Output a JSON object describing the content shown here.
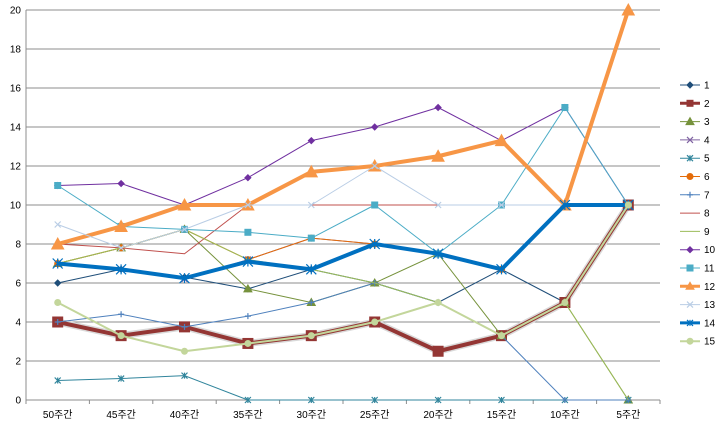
{
  "chart_data": {
    "type": "line",
    "title": "",
    "xlabel": "",
    "ylabel": "",
    "ylim": [
      0,
      20
    ],
    "yticks": [
      0,
      2,
      4,
      6,
      8,
      10,
      12,
      14,
      16,
      18,
      20
    ],
    "grid": "horizontal",
    "legend_position": "right",
    "categories": [
      "50주간",
      "45주간",
      "40주간",
      "35주간",
      "30주간",
      "25주간",
      "20주간",
      "15주간",
      "10주간",
      "5주간"
    ],
    "series": [
      {
        "name": "1",
        "color": "#1f4e79",
        "marker": "diamond",
        "width": 1,
        "values": [
          6,
          6.7,
          6.3,
          5.7,
          6.7,
          6,
          5,
          6.7,
          5,
          10
        ]
      },
      {
        "name": "2",
        "color": "#943634",
        "marker": "square",
        "width": 4,
        "casing": "#d9d9d9",
        "values": [
          4,
          3.3,
          3.75,
          2.9,
          3.3,
          4,
          2.5,
          3.3,
          5,
          10
        ]
      },
      {
        "name": "3",
        "color": "#76923c",
        "marker": "triangle",
        "width": 1,
        "values": [
          7,
          7.8,
          8.75,
          5.7,
          5,
          6,
          7.5,
          3.3,
          5,
          0
        ]
      },
      {
        "name": "4",
        "color": "#8064a2",
        "marker": "x",
        "width": 1,
        "values": [
          7,
          6.7,
          6.2,
          7.2,
          8.3,
          8,
          7.5,
          6.7,
          10,
          10
        ]
      },
      {
        "name": "5",
        "color": "#31859c",
        "marker": "star",
        "width": 1,
        "values": [
          1,
          1.1,
          1.25,
          0,
          0,
          0,
          0,
          0,
          0,
          0
        ]
      },
      {
        "name": "6",
        "color": "#e46c0a",
        "marker": "circle",
        "width": 1,
        "values": [
          7,
          7.8,
          8.75,
          7.2,
          8.3,
          8,
          7.5,
          6.7,
          10,
          10
        ]
      },
      {
        "name": "7",
        "color": "#4f81bd",
        "marker": "plus",
        "width": 1,
        "values": [
          4,
          4.4,
          3.75,
          4.3,
          5,
          6,
          5,
          3.3,
          0,
          0
        ]
      },
      {
        "name": "8",
        "color": "#c0504d",
        "marker": "none",
        "width": 1,
        "values": [
          8,
          7.8,
          7.5,
          10,
          10,
          10,
          10,
          10,
          10,
          10
        ]
      },
      {
        "name": "9",
        "color": "#9bbb59",
        "marker": "none",
        "width": 1,
        "values": [
          7,
          7.8,
          8.75,
          7.2,
          6.7,
          6,
          5,
          3.3,
          5,
          0
        ]
      },
      {
        "name": "10",
        "color": "#7030a0",
        "marker": "diamond",
        "width": 1,
        "values": [
          11,
          11.1,
          10,
          11.4,
          13.3,
          14,
          15,
          13.3,
          15,
          10
        ]
      },
      {
        "name": "11",
        "color": "#4bacc6",
        "marker": "square",
        "width": 1,
        "values": [
          11,
          8.9,
          8.75,
          8.6,
          8.3,
          10,
          7.5,
          10,
          15,
          10
        ]
      },
      {
        "name": "12",
        "color": "#f79646",
        "marker": "triangle",
        "width": 4,
        "values": [
          8,
          8.9,
          10,
          10,
          11.7,
          12,
          12.5,
          13.3,
          10,
          20
        ]
      },
      {
        "name": "13",
        "color": "#b9cde5",
        "marker": "x",
        "width": 1,
        "values": [
          9,
          7.8,
          8.75,
          10,
          10,
          12,
          10,
          10,
          10,
          10
        ]
      },
      {
        "name": "14",
        "color": "#0070c0",
        "marker": "star",
        "width": 4,
        "values": [
          7,
          6.7,
          6.25,
          7.1,
          6.7,
          8,
          7.5,
          6.7,
          10,
          10
        ]
      },
      {
        "name": "15",
        "color": "#c3d69b",
        "marker": "circle",
        "width": 2,
        "values": [
          5,
          3.3,
          2.5,
          2.9,
          3.3,
          4,
          5,
          3.3,
          5,
          10
        ]
      }
    ]
  }
}
